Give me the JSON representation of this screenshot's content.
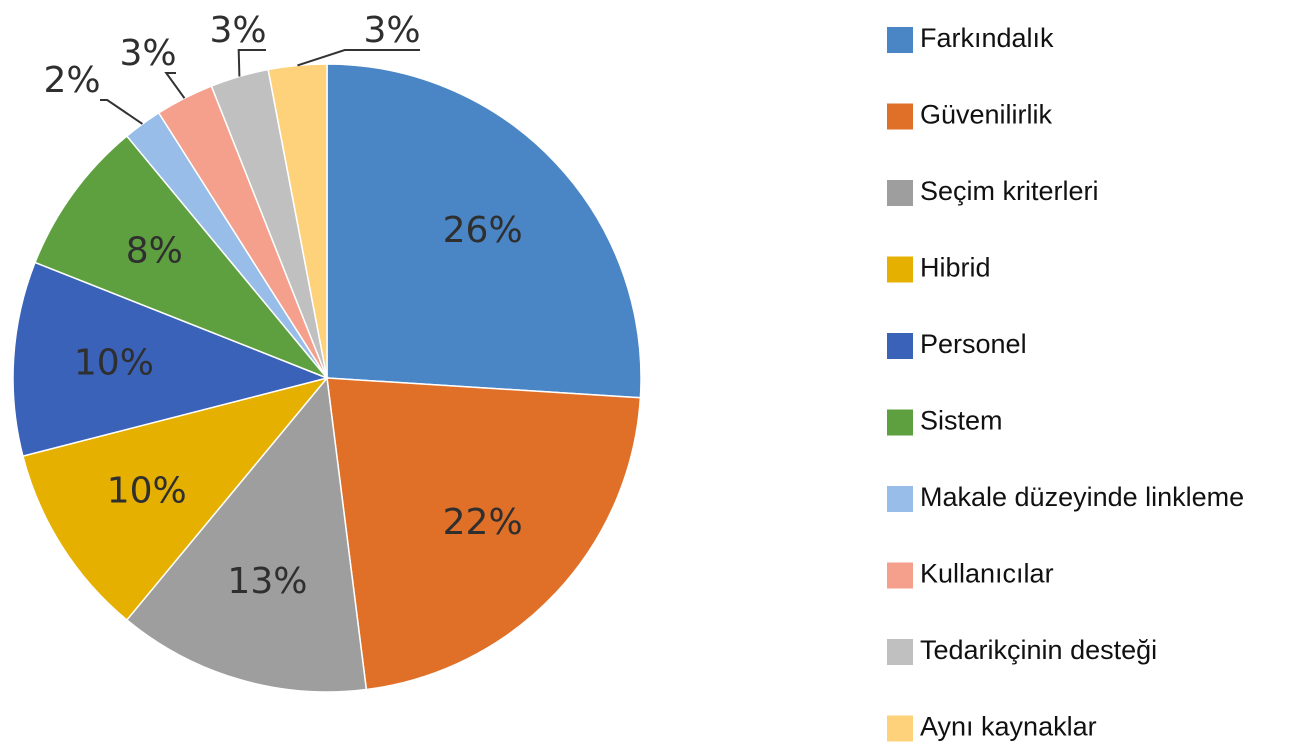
{
  "chart_data": {
    "type": "pie",
    "categories": [
      "Farkındalık",
      "Güvenilirlik",
      "Seçim kriterleri",
      "Hibrid",
      "Personel",
      "Sistem",
      "Makale düzeyinde linkleme",
      "Kullanıcılar",
      "Tedarikçinin desteği",
      "Aynı kaynaklar"
    ],
    "values": [
      26,
      22,
      13,
      10,
      10,
      8,
      2,
      3,
      3,
      3
    ],
    "value_labels": [
      "26%",
      "22%",
      "13%",
      "10%",
      "10%",
      "8%",
      "2%",
      "3%",
      "3%",
      "3%"
    ],
    "colors": [
      "#4a86c5",
      "#e07028",
      "#9e9e9e",
      "#e6b000",
      "#3a62b8",
      "#5ea040",
      "#98bde8",
      "#f4a08c",
      "#c0c0c0",
      "#fdd27a"
    ],
    "legend": "right"
  }
}
